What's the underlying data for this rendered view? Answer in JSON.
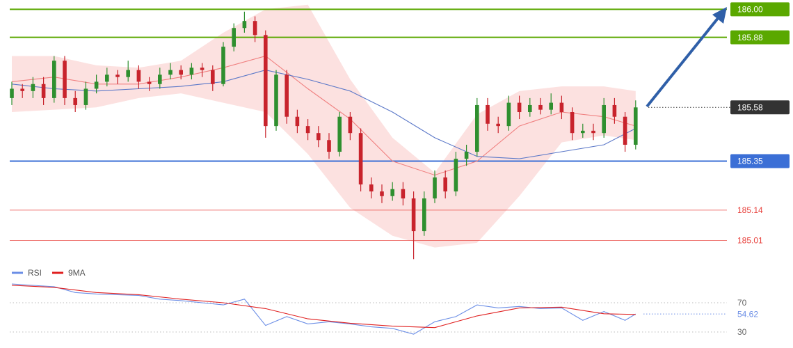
{
  "chart_data": [
    {
      "type": "candlestick",
      "up_color": "#2f8f2f",
      "down_color": "#c8232c",
      "open": [
        185.62,
        185.66,
        185.65,
        185.68,
        185.62,
        185.78,
        185.62,
        185.59,
        185.66,
        185.69,
        185.72,
        185.71,
        185.74,
        185.69,
        185.68,
        185.72,
        185.74,
        185.72,
        185.75,
        185.74,
        185.68,
        185.84,
        185.92,
        185.95,
        185.89,
        185.5,
        185.72,
        185.54,
        185.5,
        185.47,
        185.44,
        185.39,
        185.54,
        185.47,
        185.25,
        185.22,
        185.2,
        185.23,
        185.19,
        185.05,
        185.19,
        185.28,
        185.22,
        185.36,
        185.39,
        185.59,
        185.51,
        185.5,
        185.6,
        185.56,
        185.59,
        185.57,
        185.6,
        185.56,
        185.47,
        185.48,
        185.47,
        185.59,
        185.54,
        185.42
      ],
      "high": [
        185.69,
        185.68,
        185.71,
        185.71,
        185.8,
        185.8,
        185.65,
        185.69,
        185.72,
        185.75,
        185.74,
        185.78,
        185.76,
        185.71,
        185.75,
        185.77,
        185.76,
        185.77,
        185.77,
        185.76,
        185.86,
        185.94,
        185.99,
        185.97,
        185.91,
        185.74,
        185.74,
        185.57,
        185.53,
        185.5,
        185.47,
        185.56,
        185.56,
        185.49,
        185.28,
        185.25,
        185.26,
        185.26,
        185.22,
        185.22,
        185.31,
        185.31,
        185.39,
        185.42,
        185.62,
        185.62,
        185.54,
        185.63,
        185.63,
        185.62,
        185.62,
        185.64,
        185.63,
        185.58,
        185.51,
        185.51,
        185.62,
        185.62,
        185.56,
        185.61
      ],
      "low": [
        185.59,
        185.62,
        185.62,
        185.59,
        185.6,
        185.59,
        185.56,
        185.57,
        185.64,
        185.67,
        185.68,
        185.69,
        185.66,
        185.65,
        185.66,
        185.7,
        185.7,
        185.7,
        185.71,
        185.65,
        185.67,
        185.82,
        185.9,
        185.86,
        185.45,
        185.48,
        185.51,
        185.47,
        185.44,
        185.41,
        185.36,
        185.37,
        185.44,
        185.22,
        185.19,
        185.17,
        185.18,
        185.16,
        184.93,
        185.03,
        185.17,
        185.19,
        185.2,
        185.33,
        185.37,
        185.48,
        185.47,
        185.48,
        185.53,
        185.54,
        185.55,
        185.55,
        185.53,
        185.44,
        185.45,
        185.44,
        185.45,
        185.51,
        185.39,
        185.4
      ],
      "close": [
        185.66,
        185.65,
        185.68,
        185.62,
        185.78,
        185.62,
        185.59,
        185.66,
        185.69,
        185.72,
        185.71,
        185.74,
        185.69,
        185.68,
        185.72,
        185.74,
        185.72,
        185.75,
        185.74,
        185.68,
        185.84,
        185.92,
        185.95,
        185.89,
        185.5,
        185.72,
        185.54,
        185.5,
        185.47,
        185.44,
        185.39,
        185.54,
        185.47,
        185.25,
        185.22,
        185.2,
        185.23,
        185.19,
        185.05,
        185.19,
        185.28,
        185.22,
        185.36,
        185.39,
        185.59,
        185.51,
        185.5,
        185.6,
        185.56,
        185.59,
        185.57,
        185.6,
        185.56,
        185.47,
        185.48,
        185.47,
        185.59,
        185.54,
        185.42,
        185.58
      ],
      "band": {
        "color": "#f9c9c6",
        "x": [
          0,
          4,
          8,
          12,
          16,
          20,
          24,
          28,
          32,
          36,
          40,
          44,
          48,
          52,
          56,
          59
        ],
        "upper": [
          185.8,
          185.8,
          185.76,
          185.75,
          185.78,
          185.9,
          186.0,
          186.02,
          185.7,
          185.45,
          185.3,
          185.55,
          185.65,
          185.67,
          185.67,
          185.65
        ],
        "lower": [
          185.56,
          185.57,
          185.58,
          185.62,
          185.64,
          185.6,
          185.56,
          185.38,
          185.15,
          185.03,
          184.98,
          185.0,
          185.2,
          185.43,
          185.46,
          185.44
        ]
      },
      "overlays": [
        {
          "color": "#f08080",
          "x": [
            0,
            4,
            8,
            12,
            16,
            20,
            24,
            28,
            32,
            36,
            40,
            44,
            48,
            52,
            56,
            59
          ],
          "values": [
            185.69,
            185.71,
            185.68,
            185.68,
            185.71,
            185.75,
            185.8,
            185.66,
            185.53,
            185.35,
            185.29,
            185.35,
            185.5,
            185.56,
            185.54,
            185.5
          ]
        },
        {
          "color": "#5b78c8",
          "x": [
            0,
            4,
            8,
            12,
            16,
            20,
            24,
            28,
            32,
            36,
            40,
            44,
            48,
            52,
            56,
            59
          ],
          "values": [
            185.68,
            185.66,
            185.65,
            185.66,
            185.67,
            185.69,
            185.74,
            185.7,
            185.65,
            185.56,
            185.45,
            185.37,
            185.36,
            185.39,
            185.42,
            185.49
          ]
        }
      ],
      "ylim": [
        184.9,
        186.04
      ],
      "levels": [
        {
          "value": 186,
          "label": "186.00",
          "color": "#5aa800",
          "style": "solid",
          "boxed": true
        },
        {
          "value": 185.88,
          "label": "185.88",
          "color": "#5aa800",
          "style": "solid",
          "boxed": true
        },
        {
          "value": 185.58,
          "label": "185.58",
          "color": "#333333",
          "style": "dotted",
          "boxed": true
        },
        {
          "value": 185.35,
          "label": "185.35",
          "color": "#3b6fd6",
          "style": "solid",
          "boxed": true
        },
        {
          "value": 185.14,
          "label": "185.14",
          "color": "#e8413c",
          "style": "thin",
          "boxed": false
        },
        {
          "value": 185.01,
          "label": "185.01",
          "color": "#e8413c",
          "style": "thin",
          "boxed": false
        }
      ]
    },
    {
      "type": "line",
      "series": [
        {
          "name": "RSI",
          "color": "#6b8ee6",
          "x": [
            0,
            2,
            4,
            6,
            8,
            10,
            12,
            14,
            16,
            18,
            20,
            22,
            24,
            26,
            28,
            30,
            32,
            34,
            36,
            38,
            40,
            42,
            44,
            46,
            48,
            50,
            52,
            54,
            56,
            58,
            59
          ],
          "values": [
            95.7,
            93.8,
            92,
            84,
            82,
            81,
            80,
            75,
            73,
            70,
            67,
            75,
            39,
            51,
            41,
            44,
            41,
            37,
            35,
            27,
            44,
            51,
            67,
            63,
            65,
            62,
            63,
            46,
            58,
            46,
            54.62
          ]
        },
        {
          "name": "9MA",
          "color": "#e02020",
          "x": [
            0,
            4,
            8,
            12,
            16,
            20,
            24,
            28,
            32,
            36,
            40,
            44,
            48,
            52,
            56,
            59
          ],
          "values": [
            94,
            91,
            84,
            81,
            75,
            70,
            62,
            48,
            42,
            38,
            36,
            52,
            63,
            64,
            55,
            54
          ]
        }
      ],
      "current": 54.62,
      "ylim": [
        20,
        100
      ],
      "yticks": [
        70,
        30
      ]
    }
  ]
}
